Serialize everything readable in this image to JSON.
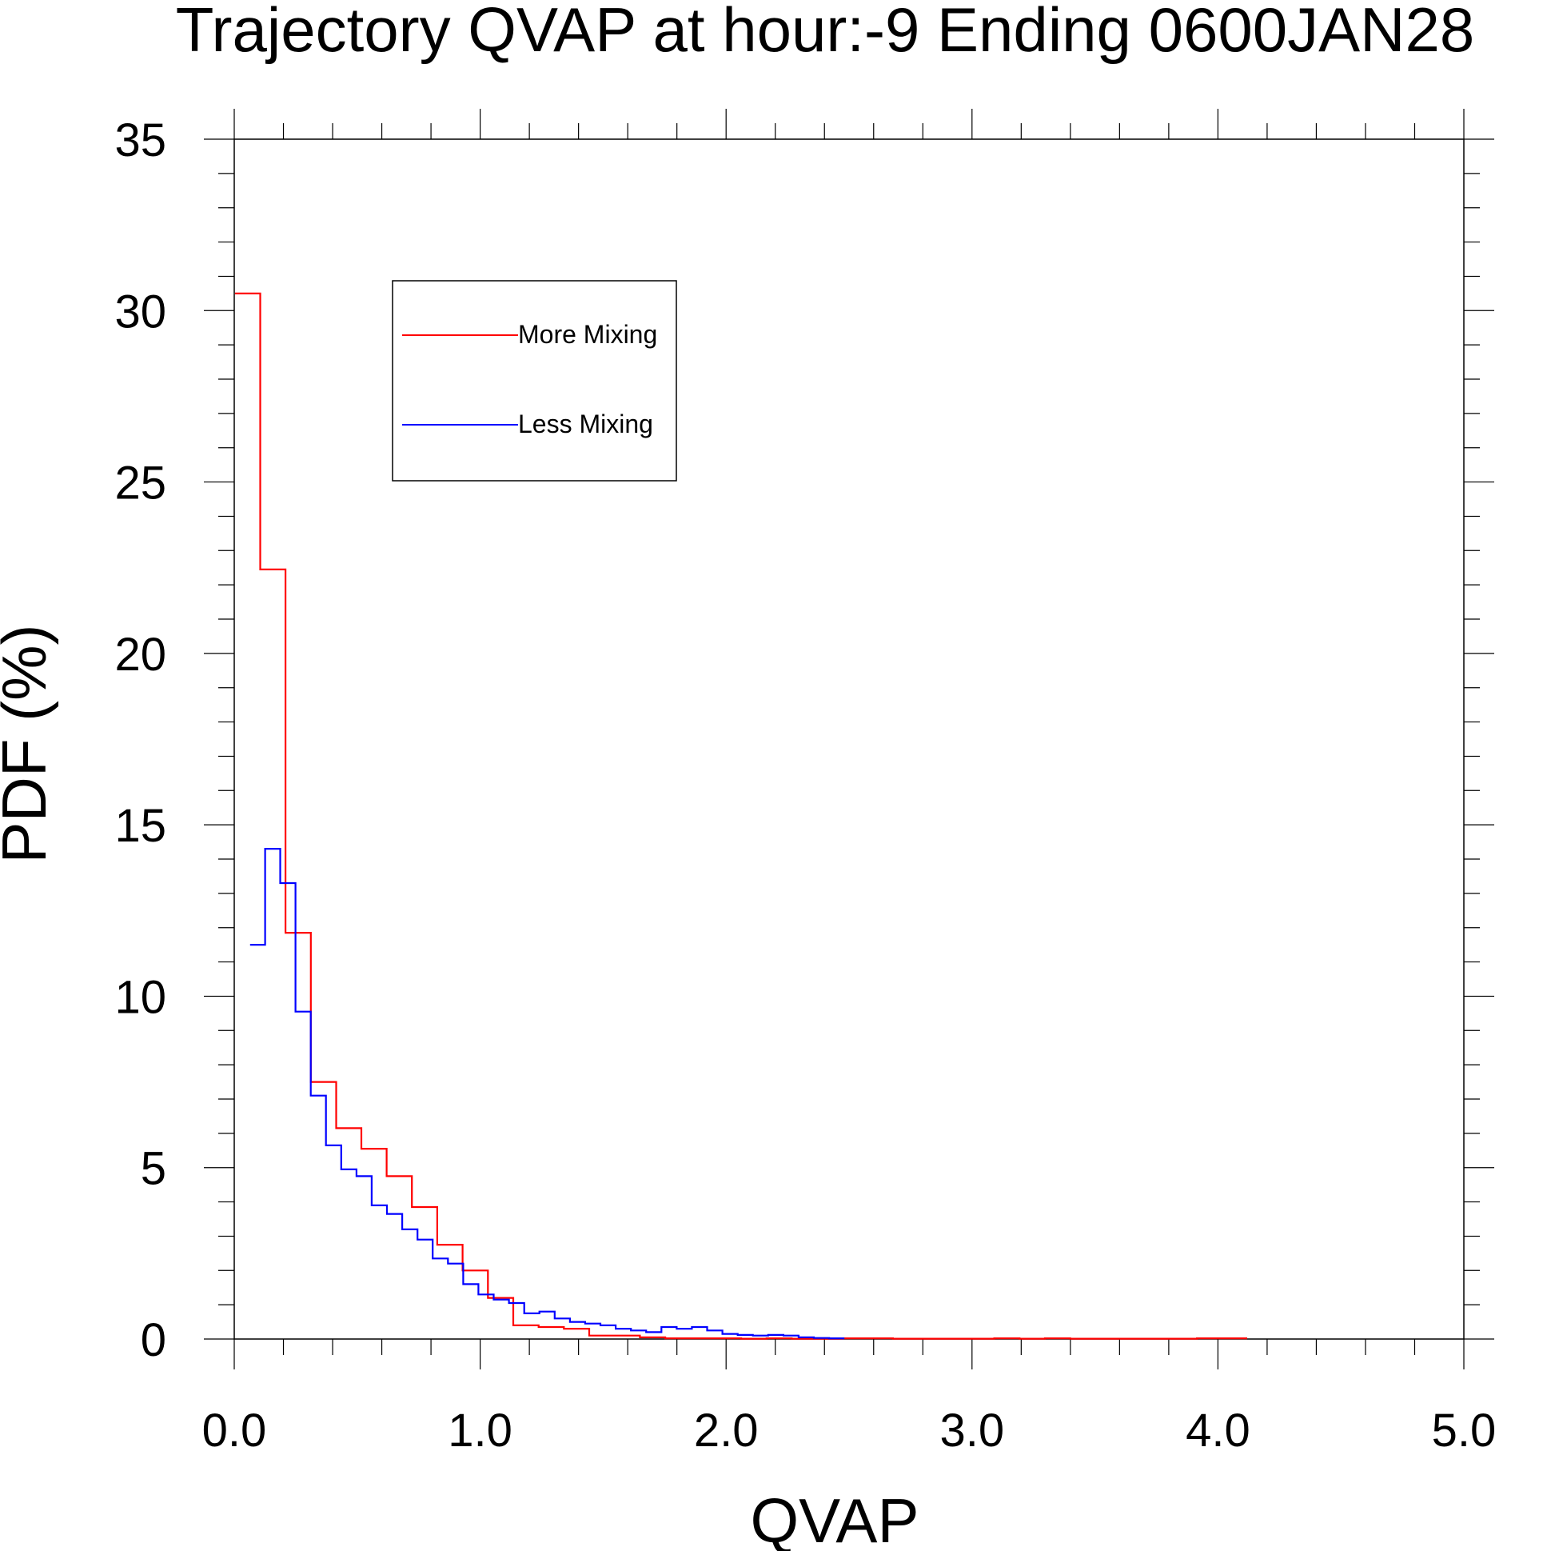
{
  "chart_data": {
    "type": "line",
    "title": "Trajectory QVAP at hour:-9 Ending 0600JAN28",
    "xlabel": "QVAP",
    "ylabel": "PDF (%)",
    "xlim": [
      0,
      5
    ],
    "ylim": [
      0,
      35
    ],
    "x_ticks": [
      0,
      1,
      2,
      3,
      4,
      5
    ],
    "x_tick_labels": [
      "0.0",
      "1.0",
      "2.0",
      "3.0",
      "4.0",
      "5.0"
    ],
    "y_ticks": [
      0,
      5,
      10,
      15,
      20,
      25,
      30,
      35
    ],
    "y_tick_labels": [
      "0",
      "5",
      "10",
      "15",
      "20",
      "25",
      "30",
      "35"
    ],
    "grid": false,
    "legend_position": "top-left",
    "series": [
      {
        "name": "More Mixing",
        "color": "#ff0000",
        "step": "mid",
        "x": [
          0.0543,
          0.157,
          0.26,
          0.363,
          0.466,
          0.568,
          0.671,
          0.774,
          0.877,
          0.98,
          1.083,
          1.186,
          1.289,
          1.392,
          1.495,
          1.598,
          1.701,
          1.804,
          1.907,
          2.01,
          2.113,
          2.216,
          2.318,
          2.421,
          2.524,
          2.627,
          2.73,
          2.833,
          2.936,
          3.039,
          3.142,
          3.245,
          3.348,
          3.451,
          3.554,
          3.657,
          3.76,
          3.863,
          3.966,
          4.068
        ],
        "y": [
          30.5,
          22.45,
          11.85,
          7.5,
          6.15,
          5.55,
          4.75,
          3.85,
          2.75,
          2.0,
          1.2,
          0.4,
          0.35,
          0.3,
          0.1,
          0.1,
          0.05,
          0.02,
          0.02,
          0.02,
          0.01,
          0.02,
          0.01,
          0.01,
          0.02,
          0.02,
          0.01,
          0.01,
          0.01,
          0.01,
          0.02,
          0.01,
          0.02,
          0.01,
          0.01,
          0.01,
          0.01,
          0.01,
          0.02,
          0.02
        ]
      },
      {
        "name": "Less Mixing",
        "color": "#0000ff",
        "step": "mid",
        "x": [
          0.095,
          0.156,
          0.218,
          0.28,
          0.342,
          0.404,
          0.466,
          0.528,
          0.59,
          0.652,
          0.714,
          0.776,
          0.838,
          0.9,
          0.962,
          1.024,
          1.086,
          1.148,
          1.21,
          1.272,
          1.334,
          1.396,
          1.458,
          1.52,
          1.582,
          1.644,
          1.706,
          1.768,
          1.83,
          1.892,
          1.954,
          2.016,
          2.078,
          2.14,
          2.202,
          2.264,
          2.326,
          2.388,
          2.45
        ],
        "y": [
          11.5,
          14.3,
          13.3,
          9.55,
          7.1,
          5.65,
          4.95,
          4.75,
          3.9,
          3.65,
          3.2,
          2.9,
          2.35,
          2.2,
          1.6,
          1.3,
          1.15,
          1.05,
          0.75,
          0.8,
          0.6,
          0.5,
          0.45,
          0.4,
          0.3,
          0.25,
          0.2,
          0.35,
          0.3,
          0.35,
          0.25,
          0.15,
          0.12,
          0.1,
          0.12,
          0.1,
          0.05,
          0.03,
          0.02
        ]
      }
    ]
  }
}
